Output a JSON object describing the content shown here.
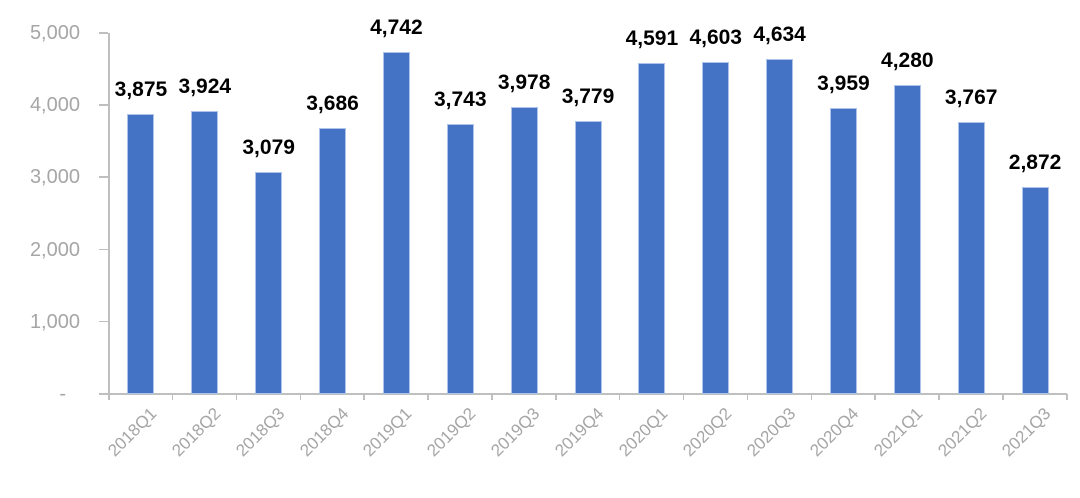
{
  "chart_data": {
    "type": "bar",
    "title": "",
    "xlabel": "",
    "ylabel": "",
    "categories": [
      "2018Q1",
      "2018Q2",
      "2018Q3",
      "2018Q4",
      "2019Q1",
      "2019Q2",
      "2019Q3",
      "2019Q4",
      "2020Q1",
      "2020Q2",
      "2020Q3",
      "2020Q4",
      "2021Q1",
      "2021Q2",
      "2021Q3"
    ],
    "values": [
      3875,
      3924,
      3079,
      3686,
      4742,
      3743,
      3978,
      3779,
      4591,
      4603,
      4634,
      3959,
      4280,
      3767,
      2872
    ],
    "value_labels": [
      "3,875",
      "3,924",
      "3,079",
      "3,686",
      "4,742",
      "3,743",
      "3,978",
      "3,779",
      "4,591",
      "4,603",
      "4,634",
      "3,959",
      "4,280",
      "3,767",
      "2,872"
    ],
    "ylim": [
      0,
      5000
    ],
    "y_ticks": [
      {
        "value": 5000,
        "label": "5,000"
      },
      {
        "value": 4000,
        "label": "4,000"
      },
      {
        "value": 3000,
        "label": "3,000"
      },
      {
        "value": 2000,
        "label": "2,000"
      },
      {
        "value": 1000,
        "label": "1,000"
      },
      {
        "value": 0,
        "label": "-"
      }
    ],
    "grid": false,
    "legend": "none",
    "data_labels_shown": true,
    "x_label_rotation_deg": -45,
    "colors": {
      "bar_fill": "#4472C4",
      "bar_border": "#AEC3E8",
      "axis_line": "#BFBFBF",
      "axis_tick_labels": "#A6A6A6",
      "data_labels": "#000000",
      "background": "#FFFFFF"
    }
  }
}
